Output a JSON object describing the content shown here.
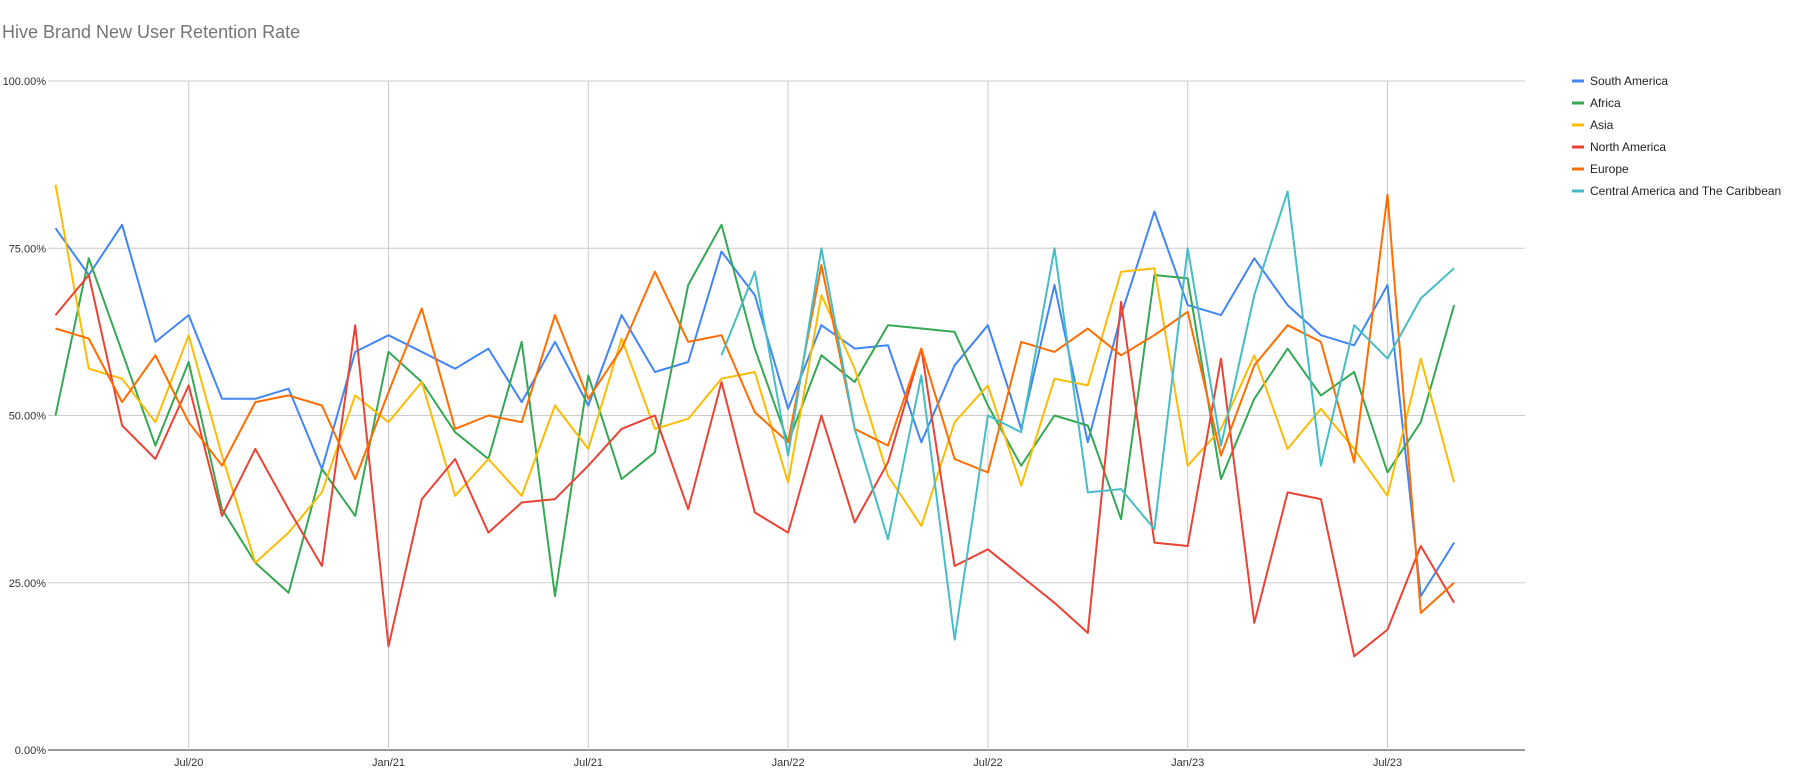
{
  "chart_data": {
    "type": "line",
    "title": "Hive Brand New User Retention Rate",
    "xlabel": "",
    "ylabel": "",
    "ylim": [
      0,
      1
    ],
    "y_ticks": [
      0,
      0.25,
      0.5,
      0.75,
      1.0
    ],
    "y_tick_labels": [
      "0.00%",
      "25.00%",
      "50.00%",
      "75.00%",
      "100.00%"
    ],
    "x_ticks": [
      {
        "label": "Jul/20",
        "index": 4
      },
      {
        "label": "Jan/21",
        "index": 10
      },
      {
        "label": "Jul/21",
        "index": 16
      },
      {
        "label": "Jan/22",
        "index": 22
      },
      {
        "label": "Jul/22",
        "index": 28
      },
      {
        "label": "Jan/23",
        "index": 34
      },
      {
        "label": "Jul/23",
        "index": 40
      }
    ],
    "x": [
      "Mar/20",
      "Apr/20",
      "May/20",
      "Jun/20",
      "Jul/20",
      "Aug/20",
      "Sep/20",
      "Oct/20",
      "Nov/20",
      "Dec/20",
      "Jan/21",
      "Feb/21",
      "Mar/21",
      "Apr/21",
      "May/21",
      "Jun/21",
      "Jul/21",
      "Aug/21",
      "Sep/21",
      "Oct/21",
      "Nov/21",
      "Dec/21",
      "Jan/22",
      "Feb/22",
      "Mar/22",
      "Apr/22",
      "May/22",
      "Jun/22",
      "Jul/22",
      "Aug/22",
      "Sep/22",
      "Oct/22",
      "Nov/22",
      "Dec/22",
      "Jan/23",
      "Feb/23",
      "Mar/23",
      "Apr/23",
      "May/23",
      "Jun/23",
      "Jul/23",
      "Aug/23",
      "Sep/23"
    ],
    "grid": true,
    "legend_position": "right",
    "series": [
      {
        "name": "South America",
        "color": "#4285F4",
        "values": [
          0.78,
          0.71,
          0.785,
          0.61,
          0.65,
          0.525,
          0.525,
          0.54,
          0.42,
          0.595,
          0.62,
          0.595,
          0.57,
          0.6,
          0.52,
          0.61,
          0.515,
          0.65,
          0.565,
          0.58,
          0.745,
          0.68,
          0.51,
          0.635,
          0.6,
          0.605,
          0.46,
          0.575,
          0.635,
          0.48,
          0.695,
          0.46,
          0.65,
          0.805,
          0.665,
          0.65,
          0.735,
          0.665,
          0.62,
          0.605,
          0.695,
          0.23,
          0.31
        ]
      },
      {
        "name": "Africa",
        "color": "#34A853",
        "values": [
          0.5,
          0.735,
          0.595,
          0.455,
          0.58,
          0.36,
          0.28,
          0.235,
          0.42,
          0.35,
          0.595,
          0.55,
          0.475,
          0.435,
          0.61,
          0.23,
          0.56,
          0.405,
          0.445,
          0.695,
          0.785,
          0.6,
          0.46,
          0.59,
          0.55,
          0.635,
          0.63,
          0.625,
          0.515,
          0.425,
          0.5,
          0.485,
          0.345,
          0.71,
          0.705,
          0.405,
          0.525,
          0.6,
          0.53,
          0.565,
          0.415,
          0.49,
          0.665
        ]
      },
      {
        "name": "Asia",
        "color": "#FBBC04",
        "values": [
          0.845,
          0.57,
          0.555,
          0.49,
          0.62,
          0.44,
          0.28,
          0.325,
          0.385,
          0.53,
          0.49,
          0.55,
          0.38,
          0.435,
          0.38,
          0.515,
          0.45,
          0.615,
          0.48,
          0.495,
          0.555,
          0.565,
          0.4,
          0.68,
          0.57,
          0.41,
          0.335,
          0.49,
          0.545,
          0.395,
          0.555,
          0.545,
          0.715,
          0.72,
          0.425,
          0.48,
          0.59,
          0.45,
          0.51,
          0.45,
          0.38,
          0.585,
          0.4
        ]
      },
      {
        "name": "North America",
        "color": "#EA4335",
        "values": [
          0.65,
          0.71,
          0.485,
          0.435,
          0.545,
          0.35,
          0.45,
          0.36,
          0.275,
          0.635,
          0.155,
          0.375,
          0.435,
          0.325,
          0.37,
          0.375,
          0.425,
          0.48,
          0.5,
          0.36,
          0.55,
          0.355,
          0.325,
          0.5,
          0.34,
          0.43,
          0.6,
          0.275,
          0.3,
          0.26,
          0.22,
          0.175,
          0.67,
          0.31,
          0.305,
          0.585,
          0.19,
          0.385,
          0.375,
          0.14,
          0.18,
          0.305,
          0.22
        ]
      },
      {
        "name": "Europe",
        "color": "#FF6D01",
        "values": [
          0.63,
          0.615,
          0.52,
          0.59,
          0.49,
          0.425,
          0.52,
          0.53,
          0.515,
          0.405,
          0.535,
          0.66,
          0.48,
          0.5,
          0.49,
          0.65,
          0.525,
          0.6,
          0.715,
          0.61,
          0.62,
          0.505,
          0.46,
          0.725,
          0.48,
          0.455,
          0.6,
          0.435,
          0.415,
          0.61,
          0.595,
          0.63,
          0.59,
          0.62,
          0.655,
          0.44,
          0.575,
          0.635,
          0.61,
          0.43,
          0.83,
          0.205,
          0.25
        ]
      },
      {
        "name": "Central America and The Caribbean",
        "color": "#46BDC6",
        "values": [
          null,
          null,
          null,
          null,
          null,
          null,
          null,
          null,
          null,
          null,
          null,
          null,
          null,
          null,
          null,
          null,
          null,
          null,
          null,
          null,
          0.59,
          0.715,
          0.44,
          0.75,
          0.48,
          0.315,
          0.56,
          0.165,
          0.5,
          0.475,
          0.75,
          0.385,
          0.39,
          0.33,
          0.75,
          0.455,
          0.68,
          0.835,
          0.425,
          0.635,
          0.585,
          0.675,
          0.72
        ]
      }
    ]
  }
}
